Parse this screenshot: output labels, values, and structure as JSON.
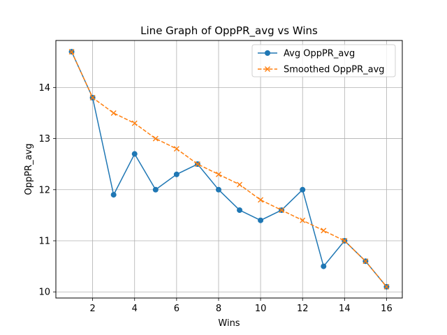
{
  "chart_data": {
    "type": "line",
    "title": "Line Graph of OppPR_avg vs Wins",
    "xlabel": "Wins",
    "ylabel": "OppPR_avg",
    "xlim": [
      0.25,
      16.75
    ],
    "ylim": [
      9.88,
      14.92
    ],
    "xticks": [
      2,
      4,
      6,
      8,
      10,
      12,
      14,
      16
    ],
    "yticks": [
      10,
      11,
      12,
      13,
      14
    ],
    "grid": true,
    "legend_position": "top-right",
    "x": [
      1,
      2,
      3,
      4,
      5,
      6,
      7,
      8,
      9,
      10,
      11,
      12,
      13,
      14,
      15,
      16
    ],
    "series": [
      {
        "name": "Avg OppPR_avg",
        "color": "#1f77b4",
        "line_style": "solid",
        "marker": "circle",
        "values": [
          14.7,
          13.8,
          11.9,
          12.7,
          12.0,
          12.3,
          12.5,
          12.0,
          11.6,
          11.4,
          11.6,
          12.0,
          10.5,
          11.0,
          10.6,
          10.1
        ]
      },
      {
        "name": "Smoothed OppPR_avg",
        "color": "#ff7f0e",
        "line_style": "dashed",
        "marker": "x",
        "values": [
          14.7,
          13.8,
          13.5,
          13.3,
          13.0,
          12.8,
          12.5,
          12.3,
          12.1,
          11.8,
          11.6,
          11.4,
          11.2,
          11.0,
          10.6,
          10.1
        ]
      }
    ]
  }
}
